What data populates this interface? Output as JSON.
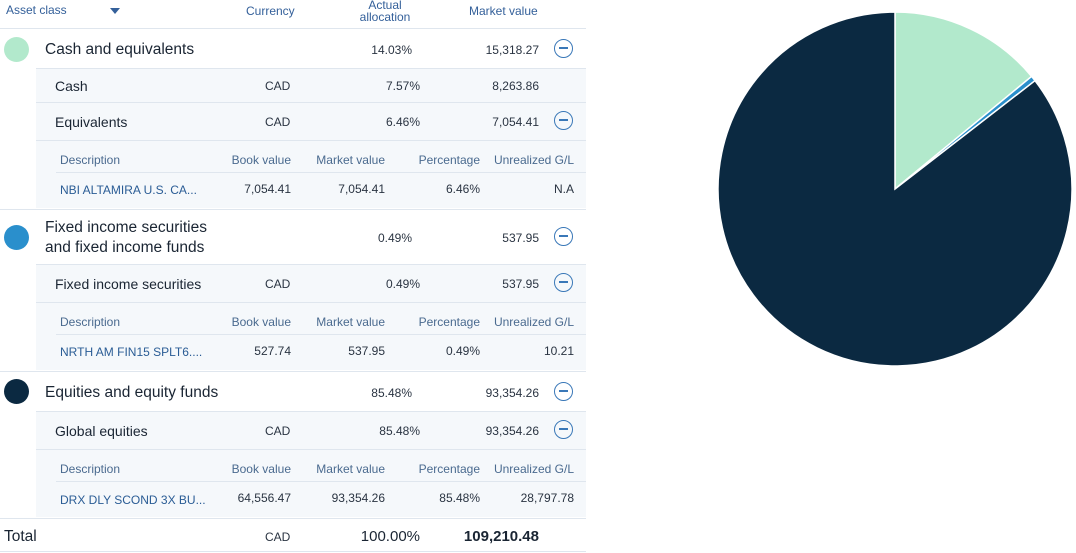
{
  "header": {
    "asset_class": "Asset class",
    "currency": "Currency",
    "actual_line1": "Actual",
    "actual_line2": "allocation",
    "market_value": "Market value"
  },
  "detail_headers": {
    "description": "Description",
    "book_value": "Book value",
    "market_value": "Market value",
    "percentage": "Percentage",
    "unrealized": "Unrealized G/L"
  },
  "groups": [
    {
      "name": "Cash and equivalents",
      "allocation": "14.03%",
      "market_value": "15,318.27",
      "color": "#b2e9cc",
      "subs": [
        {
          "name": "Cash",
          "currency": "CAD",
          "allocation": "7.57%",
          "market_value": "8,263.86"
        },
        {
          "name": "Equivalents",
          "currency": "CAD",
          "allocation": "6.46%",
          "market_value": "7,054.41"
        }
      ],
      "holding": {
        "description": "NBI ALTAMIRA U.S. CA...",
        "book_value": "7,054.41",
        "market_value": "7,054.41",
        "percentage": "6.46%",
        "unrealized": "N.A"
      }
    },
    {
      "name_line1": "Fixed income securities",
      "name_line2": "and fixed income funds",
      "allocation": "0.49%",
      "market_value": "537.95",
      "color": "#2a8fcc",
      "subs": [
        {
          "name": "Fixed income securities",
          "currency": "CAD",
          "allocation": "0.49%",
          "market_value": "537.95"
        }
      ],
      "holding": {
        "description": "NRTH AM FIN15 SPLT6....",
        "book_value": "527.74",
        "market_value": "537.95",
        "percentage": "0.49%",
        "unrealized": "10.21"
      }
    },
    {
      "name": "Equities and equity funds",
      "allocation": "85.48%",
      "market_value": "93,354.26",
      "color": "#0b2941",
      "subs": [
        {
          "name": "Global equities",
          "currency": "CAD",
          "allocation": "85.48%",
          "market_value": "93,354.26"
        }
      ],
      "holding": {
        "description": "DRX DLY SCOND 3X BU...",
        "book_value": "64,556.47",
        "market_value": "93,354.26",
        "percentage": "85.48%",
        "unrealized": "28,797.78"
      }
    }
  ],
  "total": {
    "label": "Total",
    "currency": "CAD",
    "allocation": "100.00%",
    "market_value": "109,210.48"
  },
  "chart_data": {
    "type": "pie",
    "categories": [
      "Cash and equivalents",
      "Fixed income securities and fixed income funds",
      "Equities and equity funds"
    ],
    "values": [
      14.03,
      0.49,
      85.48
    ],
    "colors": [
      "#b2e9cc",
      "#2a8fcc",
      "#0b2941"
    ]
  }
}
